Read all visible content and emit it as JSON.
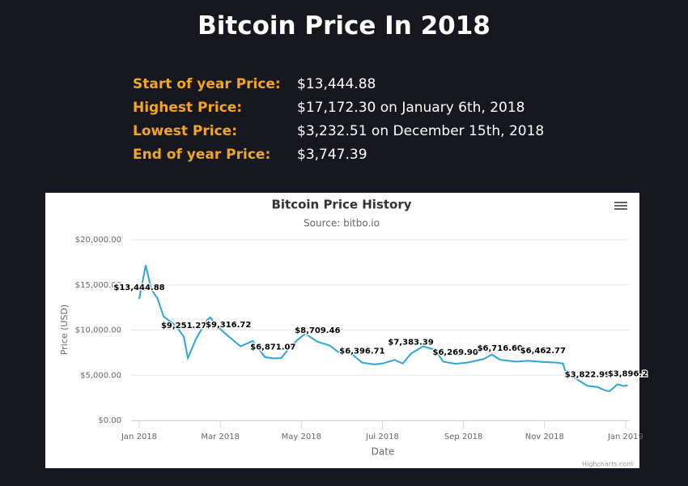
{
  "header": {
    "title": "Bitcoin Price In 2018"
  },
  "stats": [
    {
      "label": "Start of year Price:",
      "value": "$13,444.88"
    },
    {
      "label": "Highest Price:",
      "value": "$17,172.30 on January 6th, 2018"
    },
    {
      "label": "Lowest Price:",
      "value": "$3,232.51 on December 15th, 2018"
    },
    {
      "label": "End of year Price:",
      "value": "$3,747.39"
    }
  ],
  "chart_data": {
    "type": "line",
    "title": "Bitcoin Price History",
    "subtitle": "Source: bitbo.io",
    "xlabel": "Date",
    "ylabel": "Price (USD)",
    "credit": "Highcharts.com",
    "color": "#2ea3dc",
    "grid": true,
    "x": [
      0,
      0.16,
      0.3,
      0.45,
      0.6,
      0.75,
      0.9,
      1.1,
      1.2,
      1.4,
      1.65,
      1.75,
      1.9,
      2.2,
      2.5,
      2.8,
      3.1,
      3.3,
      3.5,
      3.7,
      3.9,
      4.1,
      4.4,
      4.7,
      4.9,
      5.2,
      5.5,
      5.8,
      6.0,
      6.3,
      6.5,
      6.7,
      7.0,
      7.3,
      7.5,
      7.8,
      8.1,
      8.5,
      8.7,
      8.9,
      9.3,
      9.6,
      9.96,
      10.3,
      10.45,
      10.5,
      10.7,
      11.06,
      11.3,
      11.5,
      11.6,
      11.8,
      11.95,
      12.05
    ],
    "values": [
      13444.88,
      17172.3,
      14500,
      13500,
      11500,
      11000,
      10500,
      9251.27,
      6900,
      9000,
      11000,
      11400,
      10500,
      9316.72,
      8200,
      8800,
      7000,
      6871.07,
      6900,
      8000,
      8900,
      9600,
      8709.46,
      8300,
      7600,
      7500,
      6396.71,
      6200,
      6300,
      6700,
      6300,
      7383.39,
      8200,
      7800,
      6500,
      6269.9,
      6400,
      6800,
      7300,
      6716.6,
      6500,
      6600,
      6462.77,
      6400,
      6300,
      5600,
      4800,
      3822.99,
      3700,
      3300,
      3232.51,
      4000,
      3800,
      3896.2
    ],
    "value_labels": [
      "$13,444.88",
      null,
      null,
      null,
      null,
      null,
      null,
      "$9,251.27",
      null,
      null,
      null,
      null,
      null,
      "$9,316.72",
      null,
      null,
      null,
      "$6,871.07",
      null,
      null,
      null,
      null,
      "$8,709.46",
      null,
      null,
      null,
      "$6,396.71",
      null,
      null,
      null,
      null,
      "$7,383.39",
      null,
      null,
      null,
      "$6,269.90",
      null,
      null,
      null,
      "$6,716.60",
      null,
      null,
      "$6,462.77",
      null,
      null,
      null,
      null,
      "$3,822.99",
      null,
      null,
      null,
      null,
      null,
      "$3,896.2"
    ],
    "xlim": [
      -0.2,
      12.1
    ],
    "xticks": [
      {
        "value": 0,
        "label": "Jan 2018"
      },
      {
        "value": 2,
        "label": "Mar 2018"
      },
      {
        "value": 4,
        "label": "May 2018"
      },
      {
        "value": 6,
        "label": "Jul 2018"
      },
      {
        "value": 8,
        "label": "Sep 2018"
      },
      {
        "value": 10,
        "label": "Nov 2018"
      },
      {
        "value": 12,
        "label": "Jan 2019"
      }
    ],
    "ylim": [
      0,
      20000
    ],
    "yticks": [
      {
        "value": 0,
        "label": "$0.00"
      },
      {
        "value": 5000,
        "label": "$5,000.00"
      },
      {
        "value": 10000,
        "label": "$10,000.00"
      },
      {
        "value": 15000,
        "label": "$15,000.00"
      },
      {
        "value": 20000,
        "label": "$20,000.00"
      }
    ]
  }
}
